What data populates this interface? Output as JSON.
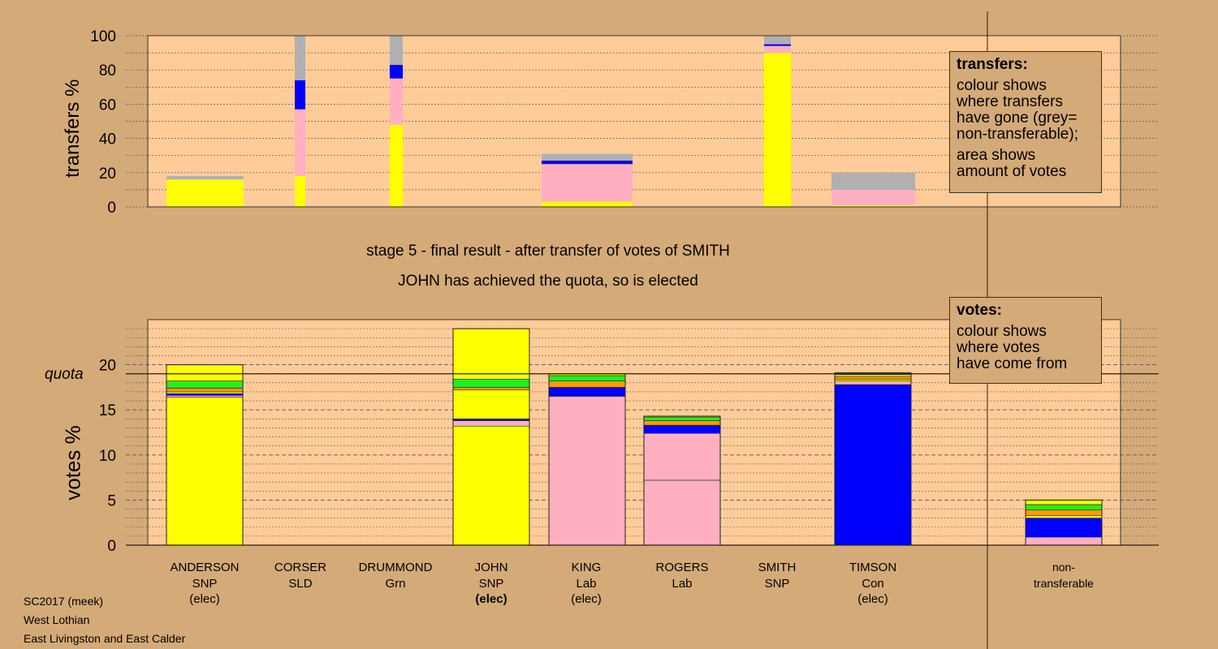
{
  "colors": {
    "background": "#d4aa78",
    "panel": "#ffcc99",
    "SNP": "#ffff00",
    "Lab": "#ffb0c0",
    "Con": "#0000ff",
    "Grn": "#22ee22",
    "SLD": "#ff9900",
    "nontransferable": "#b0b0b0"
  },
  "caption": {
    "line1": "stage 5 - final result - after transfer of votes of SMITH",
    "line2": "JOHN has achieved the quota, so is elected"
  },
  "legend_transfers": {
    "title": "transfers:",
    "p1": [
      "colour shows",
      "where transfers",
      "have gone (grey=",
      "non-transferable);"
    ],
    "p2": [
      "area shows",
      "amount of votes"
    ]
  },
  "legend_votes": {
    "title": "votes:",
    "p1": [
      "colour shows",
      "where votes",
      "have come from"
    ]
  },
  "footer": [
    "SC2017 (meek)",
    "West Lothian",
    "East Livingston and East Calder"
  ],
  "chart_data": [
    {
      "type": "bar",
      "ylabel": "transfers %",
      "ylim": [
        0,
        100
      ],
      "yticks": [
        "0",
        "20",
        "40",
        "60",
        "80",
        "100"
      ],
      "grid": true,
      "columns": [
        {
          "name": "ANDERSON",
          "segments": [
            {
              "color": "SNP",
              "value": 16
            },
            {
              "color": "nontransferable",
              "value": 2
            }
          ]
        },
        {
          "name": "CORSER",
          "segments": [
            {
              "color": "SNP",
              "value": 18
            },
            {
              "color": "Lab",
              "value": 39
            },
            {
              "color": "Con",
              "value": 17
            },
            {
              "color": "nontransferable",
              "value": 26
            }
          ]
        },
        {
          "name": "DRUMMOND",
          "segments": [
            {
              "color": "SNP",
              "value": 48
            },
            {
              "color": "Lab",
              "value": 27
            },
            {
              "color": "Con",
              "value": 8
            },
            {
              "color": "nontransferable",
              "value": 17
            }
          ]
        },
        {
          "name": "KING",
          "segments": [
            {
              "color": "SNP",
              "value": 3
            },
            {
              "color": "Lab",
              "value": 22
            },
            {
              "color": "Con",
              "value": 2
            },
            {
              "color": "nontransferable",
              "value": 4
            }
          ]
        },
        {
          "name": "SMITH",
          "segments": [
            {
              "color": "SNP",
              "value": 90
            },
            {
              "color": "Lab",
              "value": 4
            },
            {
              "color": "Con",
              "value": 1
            },
            {
              "color": "nontransferable",
              "value": 5
            }
          ]
        },
        {
          "name": "TIMSON",
          "segments": [
            {
              "color": "SNP",
              "value": 1
            },
            {
              "color": "Lab",
              "value": 9
            },
            {
              "color": "nontransferable",
              "value": 10
            }
          ]
        }
      ]
    },
    {
      "type": "bar",
      "ylabel": "votes %",
      "ylim": [
        0,
        25
      ],
      "yticks": [
        "0",
        "5",
        "10",
        "15",
        "20"
      ],
      "quota": 19,
      "quota_label": "quota",
      "grid": true,
      "candidates": [
        {
          "name": "ANDERSON",
          "party": "SNP",
          "status": "(elec)",
          "status_bold": false,
          "segments": [
            {
              "color": "SNP",
              "value": 16.4
            },
            {
              "color": "Lab",
              "value": 0.2
            },
            {
              "color": "Con",
              "value": 0.2
            },
            {
              "color": "SNP",
              "value": 0.2
            },
            {
              "color": "SLD",
              "value": 0.4
            },
            {
              "color": "Grn",
              "value": 0.8
            },
            {
              "color": "SNP",
              "value": 1.8
            }
          ]
        },
        {
          "name": "CORSER",
          "party": "SLD",
          "status": "",
          "status_bold": false,
          "segments": []
        },
        {
          "name": "DRUMMOND",
          "party": "Grn",
          "status": "",
          "status_bold": false,
          "segments": []
        },
        {
          "name": "JOHN",
          "party": "SNP",
          "status": "(elec)",
          "status_bold": true,
          "segments": [
            {
              "color": "SNP",
              "value": 13.2
            },
            {
              "color": "Lab",
              "value": 0.6
            },
            {
              "color": "Con",
              "value": 0.2
            },
            {
              "color": "SNP",
              "value": 3.2
            },
            {
              "color": "SLD",
              "value": 0.3
            },
            {
              "color": "Grn",
              "value": 0.9
            },
            {
              "color": "SNP",
              "value": 5.6
            }
          ]
        },
        {
          "name": "KING",
          "party": "Lab",
          "status": "(elec)",
          "status_bold": false,
          "segments": [
            {
              "color": "Lab",
              "value": 16.5
            },
            {
              "color": "Con",
              "value": 1
            },
            {
              "color": "SLD",
              "value": 0.7
            },
            {
              "color": "Grn",
              "value": 0.6
            },
            {
              "color": "SNP",
              "value": 0.2
            }
          ]
        },
        {
          "name": "ROGERS",
          "party": "Lab",
          "status": "",
          "status_bold": false,
          "segments": [
            {
              "color": "Lab",
              "value": 7.2
            },
            {
              "color": "Lab",
              "value": 5.2
            },
            {
              "color": "Con",
              "value": 0.9
            },
            {
              "color": "SLD",
              "value": 0.5
            },
            {
              "color": "Grn",
              "value": 0.4
            },
            {
              "color": "SNP",
              "value": 0.1
            }
          ]
        },
        {
          "name": "SMITH",
          "party": "SNP",
          "status": "",
          "status_bold": false,
          "segments": []
        },
        {
          "name": "TIMSON",
          "party": "Con",
          "status": "(elec)",
          "status_bold": false,
          "segments": [
            {
              "color": "Con",
              "value": 17.8
            },
            {
              "color": "Lab",
              "value": 0.4
            },
            {
              "color": "SNP",
              "value": 0.2
            },
            {
              "color": "SLD",
              "value": 0.3
            },
            {
              "color": "SNP",
              "value": 0.2
            },
            {
              "color": "Grn",
              "value": 0.2
            }
          ]
        }
      ],
      "nontransferable": {
        "label1": "non-",
        "label2": "transferable",
        "segments": [
          {
            "color": "Lab",
            "value": 0.9
          },
          {
            "color": "Con",
            "value": 2.1
          },
          {
            "color": "SNP",
            "value": 0.3
          },
          {
            "color": "SLD",
            "value": 0.6
          },
          {
            "color": "Grn",
            "value": 0.6
          },
          {
            "color": "SNP",
            "value": 0.5
          }
        ]
      }
    }
  ]
}
